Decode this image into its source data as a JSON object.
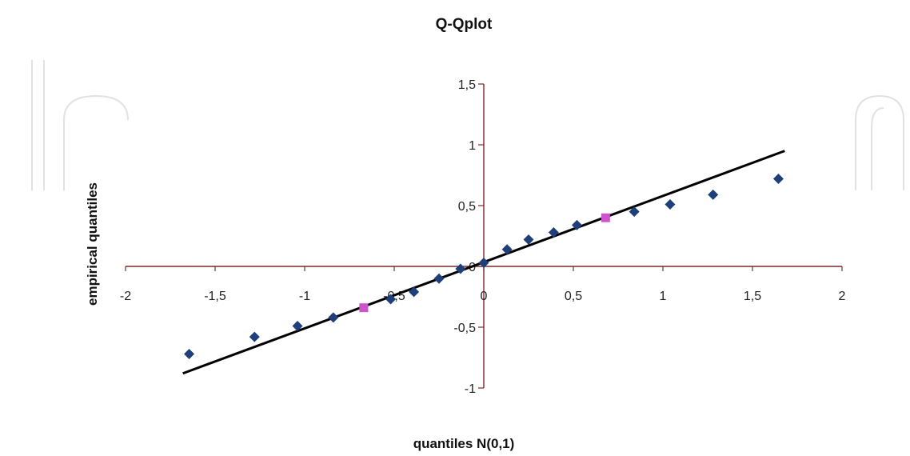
{
  "chart_data": {
    "type": "scatter",
    "title": "Q-Qplot",
    "xlabel": "quantiles N(0,1)",
    "ylabel": "empirical quantiles",
    "xlim": [
      -2,
      2
    ],
    "ylim": [
      -1,
      1.5
    ],
    "x_ticks": [
      "-2",
      "-1,5",
      "-1",
      "-0,5",
      "0",
      "0,5",
      "1",
      "1,5",
      "2"
    ],
    "y_ticks": [
      "-1",
      "-0,5",
      "0,5",
      "1",
      "1,5"
    ],
    "grid": false,
    "legend": "none",
    "series": [
      {
        "color": "#1f3f7a",
        "marker": "diamond",
        "points": [
          [
            -1.645,
            -0.72
          ],
          [
            -1.28,
            -0.58
          ],
          [
            -1.04,
            -0.49
          ],
          [
            -0.84,
            -0.42
          ],
          [
            -0.52,
            -0.27
          ],
          [
            -0.39,
            -0.21
          ],
          [
            -0.25,
            -0.1
          ],
          [
            -0.13,
            -0.02
          ],
          [
            0.0,
            0.03
          ],
          [
            0.13,
            0.14
          ],
          [
            0.25,
            0.22
          ],
          [
            0.39,
            0.28
          ],
          [
            0.52,
            0.34
          ],
          [
            0.84,
            0.45
          ],
          [
            1.04,
            0.51
          ],
          [
            1.28,
            0.59
          ],
          [
            1.645,
            0.72
          ]
        ]
      },
      {
        "color": "#cc55cc",
        "marker": "square",
        "points": [
          [
            -0.67,
            -0.34
          ],
          [
            0.68,
            0.4
          ]
        ]
      }
    ],
    "fit_line": {
      "color": "#000000",
      "points": [
        [
          -1.68,
          -0.88
        ],
        [
          1.68,
          0.95
        ]
      ]
    }
  }
}
